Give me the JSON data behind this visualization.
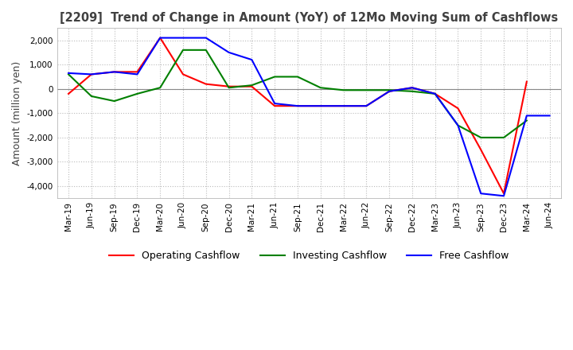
{
  "title": "[2209]  Trend of Change in Amount (YoY) of 12Mo Moving Sum of Cashflows",
  "ylabel": "Amount (million yen)",
  "x_labels": [
    "Mar-19",
    "Jun-19",
    "Sep-19",
    "Dec-19",
    "Mar-20",
    "Jun-20",
    "Sep-20",
    "Dec-20",
    "Mar-21",
    "Jun-21",
    "Sep-21",
    "Dec-21",
    "Mar-22",
    "Jun-22",
    "Sep-22",
    "Dec-22",
    "Mar-23",
    "Jun-23",
    "Sep-23",
    "Dec-23",
    "Mar-24",
    "Jun-24"
  ],
  "operating": [
    -200,
    600,
    700,
    700,
    2100,
    600,
    200,
    100,
    100,
    -700,
    -700,
    -700,
    -700,
    -700,
    -100,
    50,
    -200,
    -800,
    -2500,
    -4300,
    300,
    null
  ],
  "investing": [
    600,
    -300,
    -500,
    -200,
    50,
    1600,
    1600,
    50,
    150,
    500,
    500,
    50,
    -50,
    -50,
    -50,
    -100,
    -200,
    -1500,
    -2000,
    -2000,
    -1300,
    null
  ],
  "free": [
    650,
    600,
    700,
    600,
    2100,
    2100,
    2100,
    1500,
    1200,
    -600,
    -700,
    -700,
    -700,
    -700,
    -100,
    50,
    -200,
    -1500,
    -4300,
    -4400,
    -1100,
    -1100
  ],
  "ylim": [
    -4500,
    2500
  ],
  "yticks": [
    -4000,
    -3000,
    -2000,
    -1000,
    0,
    1000,
    2000
  ],
  "colors": {
    "operating": "#FF0000",
    "investing": "#008000",
    "free": "#0000FF"
  },
  "background_color": "#FFFFFF",
  "grid_color": "#BBBBBB",
  "title_color": "#404040",
  "legend_labels": [
    "Operating Cashflow",
    "Investing Cashflow",
    "Free Cashflow"
  ]
}
